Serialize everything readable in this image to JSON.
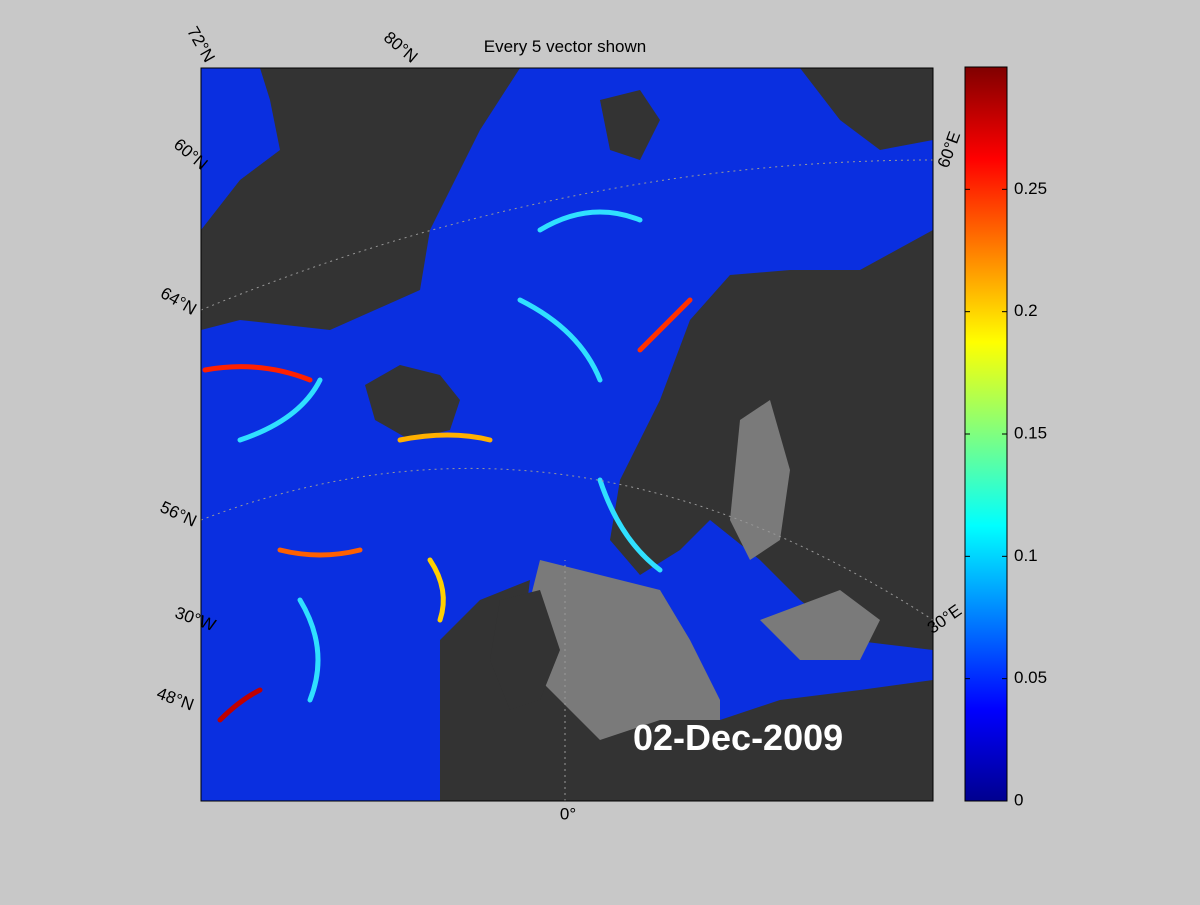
{
  "title": "Every 5 vector shown",
  "date_label": "02-Dec-2009",
  "graticule_labels": [
    "72°N",
    "80°N",
    "60°N",
    "64°N",
    "56°N",
    "30°W",
    "48°N",
    "0°",
    "30°E",
    "60°E"
  ],
  "colorbar": {
    "lim": [
      0,
      0.3
    ],
    "ticks": [
      0,
      0.05,
      0.1,
      0.15,
      0.2,
      0.25
    ]
  }
}
